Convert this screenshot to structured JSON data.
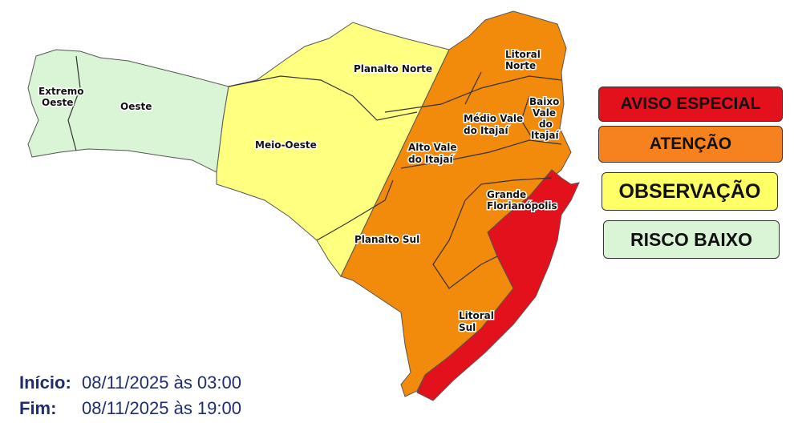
{
  "map": {
    "regions": [
      {
        "name": "Extremo Oeste",
        "level": "RISCO BAIXO"
      },
      {
        "name": "Oeste",
        "level": "RISCO BAIXO"
      },
      {
        "name": "Meio-Oeste",
        "level": "OBSERVAÇÃO"
      },
      {
        "name": "Planalto Norte",
        "level": "OBSERVAÇÃO"
      },
      {
        "name": "Planalto Sul",
        "level": "ATENÇÃO"
      },
      {
        "name": "Alto Vale do Itajaí",
        "level": "ATENÇÃO"
      },
      {
        "name": "Médio Vale do Itajaí",
        "level": "ATENÇÃO"
      },
      {
        "name": "Litoral Norte",
        "level": "ATENÇÃO"
      },
      {
        "name": "Baixo Vale do Itajaí",
        "level": "ATENÇÃO"
      },
      {
        "name": "Grande Florianópolis",
        "level": "ATENÇÃO"
      },
      {
        "name": "Litoral Sul",
        "level": "ATENÇÃO"
      }
    ],
    "labels": {
      "extremo_oeste_1": "Extremo",
      "extremo_oeste_2": "Oeste",
      "oeste": "Oeste",
      "meio_oeste": "Meio-Oeste",
      "planalto_norte": "Planalto Norte",
      "planalto_sul": "Planalto Sul",
      "alto_vale_1": "Alto Vale",
      "alto_vale_2": "do Itajaí",
      "medio_vale_1": "Médio Vale",
      "medio_vale_2": "do Itajaí",
      "litoral_norte_1": "Litoral",
      "litoral_norte_2": "Norte",
      "baixo_vale_1": "Baixo",
      "baixo_vale_2": "Vale",
      "baixo_vale_3": "do",
      "baixo_vale_4": "Itajaí",
      "grande_fpolis_1": "Grande",
      "grande_fpolis_2": "Florianópolis",
      "litoral_sul_1": "Litoral",
      "litoral_sul_2": "Sul"
    }
  },
  "legend": [
    {
      "label": "AVISO ESPECIAL",
      "color": "#e3111b"
    },
    {
      "label": "ATENÇÃO",
      "color": "#f5821f"
    },
    {
      "label": "OBSERVAÇÃO",
      "color": "#ffff66"
    },
    {
      "label": "RISCO BAIXO",
      "color": "#d9f5d6"
    }
  ],
  "period": {
    "start_label": "Início:",
    "start_value": "08/11/2025 às 03:00",
    "end_label": "Fim:",
    "end_value": "08/11/2025 às 19:00"
  }
}
